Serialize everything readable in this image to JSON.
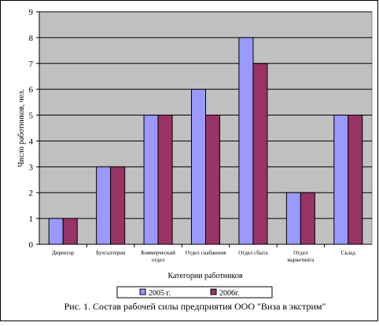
{
  "chart_data": {
    "type": "bar",
    "categories": [
      [
        "Директор"
      ],
      [
        "Бухгалтерия"
      ],
      [
        "Коммерческий",
        "отдел"
      ],
      [
        "Отдел снабжения"
      ],
      [
        "Отдел сбыта"
      ],
      [
        "Отдел",
        "маркетинга"
      ],
      [
        "Склад"
      ]
    ],
    "series": [
      {
        "name": "2005 г.",
        "color": "#9999ff",
        "values": [
          1,
          3,
          5,
          6,
          8,
          2,
          5
        ]
      },
      {
        "name": "2006г.",
        "color": "#993366",
        "values": [
          1,
          3,
          5,
          5,
          7,
          2,
          5
        ]
      }
    ],
    "ylabel": "Число работников, чел.",
    "xlabel": "Категории работников",
    "ylim": [
      0,
      9
    ],
    "yticks": [
      0,
      1,
      2,
      3,
      4,
      5,
      6,
      7,
      8,
      9
    ],
    "grid": true,
    "plot_background": "#c0c0c0",
    "legend_position": "bottom"
  },
  "caption": "Рис. 1. Состав рабочей силы предприятия ООО \"Виза в экстрим\""
}
